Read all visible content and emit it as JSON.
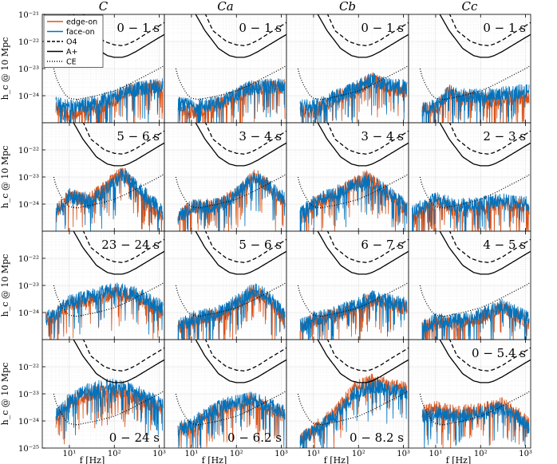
{
  "chart_data": {
    "type": "line",
    "title": "",
    "columns": [
      "C",
      "Ca",
      "Cb",
      "Cc"
    ],
    "xlabel": "f [Hz]",
    "ylabel": "h_c @ 10 Mpc",
    "xscale": "log",
    "yscale": "log",
    "xlim": [
      2.5,
      1300
    ],
    "ylim": [
      1e-25,
      1e-21
    ],
    "x_ticks": [
      10,
      100,
      1000
    ],
    "x_tick_labels": [
      "10^1",
      "10^2",
      "10^3"
    ],
    "y_tick_labels": [
      "10^-21",
      "10^-22",
      "10^-23",
      "10^-24",
      "10^-25"
    ],
    "grid": true,
    "legend": {
      "location": "top-left of first panel",
      "entries": [
        {
          "label": "edge-on",
          "style": "solid",
          "color": "#D95319"
        },
        {
          "label": "face-on",
          "style": "solid",
          "color": "#0072BD"
        },
        {
          "label": "O4",
          "style": "dashed",
          "color": "#000000"
        },
        {
          "label": "A+",
          "style": "solid",
          "color": "#000000"
        },
        {
          "label": "CE",
          "style": "dotted",
          "color": "#000000"
        }
      ]
    },
    "detector_curves": [
      {
        "name": "O4",
        "style": "dashed",
        "points": [
          [
            20,
            1.1e-21
          ],
          [
            30,
            2.5e-22
          ],
          [
            60,
            1e-22
          ],
          [
            100,
            7.5e-23
          ],
          [
            150,
            7e-23
          ],
          [
            200,
            8e-23
          ],
          [
            300,
            1.1e-22
          ],
          [
            500,
            1.9e-22
          ],
          [
            1000,
            3.8e-22
          ],
          [
            1300,
            5e-22
          ]
        ]
      },
      {
        "name": "A+",
        "style": "solid",
        "points": [
          [
            12,
            1.1e-21
          ],
          [
            20,
            2.5e-22
          ],
          [
            40,
            5.5e-23
          ],
          [
            70,
            3e-23
          ],
          [
            100,
            2.6e-23
          ],
          [
            150,
            2.6e-23
          ],
          [
            200,
            3e-23
          ],
          [
            300,
            4.2e-23
          ],
          [
            500,
            7e-23
          ],
          [
            1000,
            1.4e-22
          ],
          [
            1300,
            1.8e-22
          ]
        ]
      },
      {
        "name": "CE",
        "style": "dotted",
        "points": [
          [
            4.5,
            1e-23
          ],
          [
            5,
            5e-24
          ],
          [
            6,
            2.5e-24
          ],
          [
            8,
            1.1e-24
          ],
          [
            10,
            8e-25
          ],
          [
            15,
            7.2e-25
          ],
          [
            20,
            8e-25
          ],
          [
            40,
            1e-24
          ],
          [
            100,
            1.5e-24
          ],
          [
            200,
            2.5e-24
          ],
          [
            500,
            5.5e-24
          ],
          [
            1000,
            1e-23
          ],
          [
            1300,
            1.3e-23
          ]
        ]
      }
    ],
    "panels": [
      {
        "row": 0,
        "col": "C",
        "label": "0 − 1 s",
        "edge": [
          [
            5,
            3e-25
          ],
          [
            10,
            2e-25
          ],
          [
            30,
            3e-25
          ],
          [
            80,
            6e-25
          ],
          [
            200,
            1.5e-24
          ],
          [
            500,
            2e-24
          ],
          [
            1200,
            2.5e-24
          ]
        ],
        "face": [
          [
            5,
            5e-25
          ],
          [
            10,
            4e-25
          ],
          [
            30,
            5e-25
          ],
          [
            80,
            8e-25
          ],
          [
            200,
            1.5e-24
          ],
          [
            500,
            2e-24
          ],
          [
            1200,
            2.5e-24
          ]
        ]
      },
      {
        "row": 0,
        "col": "Ca",
        "label": "0 − 1 s",
        "edge": [
          [
            5,
            3e-25
          ],
          [
            10,
            2.5e-25
          ],
          [
            30,
            4e-25
          ],
          [
            80,
            8e-25
          ],
          [
            200,
            1.8e-24
          ],
          [
            500,
            2e-24
          ],
          [
            1200,
            2.2e-24
          ]
        ],
        "face": [
          [
            5,
            5e-25
          ],
          [
            10,
            4e-25
          ],
          [
            30,
            5e-25
          ],
          [
            80,
            9e-25
          ],
          [
            200,
            2e-24
          ],
          [
            500,
            2.2e-24
          ],
          [
            1200,
            2.5e-24
          ]
        ]
      },
      {
        "row": 0,
        "col": "Cb",
        "label": "0 − 1 s",
        "edge": [
          [
            5,
            3e-25
          ],
          [
            10,
            2.5e-25
          ],
          [
            30,
            8e-25
          ],
          [
            80,
            1.5e-24
          ],
          [
            200,
            4e-24
          ],
          [
            500,
            2e-24
          ],
          [
            1200,
            1.5e-24
          ]
        ],
        "face": [
          [
            5,
            4e-25
          ],
          [
            10,
            4e-25
          ],
          [
            30,
            9e-25
          ],
          [
            80,
            1.8e-24
          ],
          [
            200,
            4e-24
          ],
          [
            500,
            2.5e-24
          ],
          [
            1200,
            2e-24
          ]
        ]
      },
      {
        "row": 0,
        "col": "Cc",
        "label": "0 − 1 s",
        "edge": [
          [
            5,
            3e-25
          ],
          [
            10,
            3e-25
          ],
          [
            20,
            1.5e-24
          ],
          [
            40,
            8e-25
          ],
          [
            100,
            7e-25
          ],
          [
            300,
            8e-25
          ],
          [
            1200,
            9e-25
          ]
        ],
        "face": [
          [
            5,
            3e-25
          ],
          [
            10,
            4e-25
          ],
          [
            20,
            1.3e-24
          ],
          [
            40,
            1e-24
          ],
          [
            100,
            1e-24
          ],
          [
            300,
            1.2e-24
          ],
          [
            1200,
            1.5e-24
          ]
        ]
      },
      {
        "row": 1,
        "col": "C",
        "label": "5 − 6 s",
        "edge": [
          [
            5,
            5e-25
          ],
          [
            10,
            2e-24
          ],
          [
            30,
            1.5e-24
          ],
          [
            80,
            6e-24
          ],
          [
            150,
            1.5e-23
          ],
          [
            300,
            4e-24
          ],
          [
            1200,
            3e-25
          ]
        ],
        "face": [
          [
            5,
            5e-25
          ],
          [
            10,
            2e-24
          ],
          [
            30,
            1.2e-24
          ],
          [
            80,
            5e-24
          ],
          [
            150,
            1.2e-23
          ],
          [
            300,
            5e-24
          ],
          [
            1200,
            5e-25
          ]
        ]
      },
      {
        "row": 1,
        "col": "Ca",
        "label": "3 − 4 s",
        "edge": [
          [
            5,
            3e-25
          ],
          [
            10,
            8e-25
          ],
          [
            40,
            9e-25
          ],
          [
            100,
            2.5e-24
          ],
          [
            250,
            1.2e-23
          ],
          [
            500,
            5e-24
          ],
          [
            1200,
            1e-24
          ]
        ],
        "face": [
          [
            5,
            3e-25
          ],
          [
            10,
            8e-25
          ],
          [
            40,
            9e-25
          ],
          [
            100,
            2.2e-24
          ],
          [
            250,
            1e-23
          ],
          [
            500,
            5e-24
          ],
          [
            1200,
            1.5e-24
          ]
        ]
      },
      {
        "row": 1,
        "col": "Cb",
        "label": "3 − 4 s",
        "edge": [
          [
            5,
            3e-25
          ],
          [
            10,
            1e-24
          ],
          [
            30,
            2e-24
          ],
          [
            80,
            6e-24
          ],
          [
            150,
            1e-23
          ],
          [
            400,
            3e-24
          ],
          [
            1200,
            6e-25
          ]
        ],
        "face": [
          [
            5,
            4e-25
          ],
          [
            10,
            1.2e-24
          ],
          [
            30,
            2.5e-24
          ],
          [
            80,
            5e-24
          ],
          [
            150,
            9e-24
          ],
          [
            400,
            3e-24
          ],
          [
            1200,
            8e-25
          ]
        ]
      },
      {
        "row": 1,
        "col": "Cc",
        "label": "2 − 3 s",
        "edge": [
          [
            3,
            3e-25
          ],
          [
            5,
            6e-25
          ],
          [
            10,
            1.2e-24
          ],
          [
            30,
            6e-25
          ],
          [
            100,
            7e-25
          ],
          [
            300,
            1.2e-24
          ],
          [
            1200,
            7e-25
          ]
        ],
        "face": [
          [
            3,
            5e-25
          ],
          [
            5,
            8e-25
          ],
          [
            10,
            1.5e-24
          ],
          [
            30,
            9e-25
          ],
          [
            100,
            1e-24
          ],
          [
            300,
            1.5e-24
          ],
          [
            1200,
            1e-24
          ]
        ]
      },
      {
        "row": 2,
        "col": "C",
        "label": "23 − 24 s",
        "edge": [
          [
            3,
            5e-25
          ],
          [
            5,
            8e-25
          ],
          [
            10,
            2e-24
          ],
          [
            30,
            3e-24
          ],
          [
            100,
            5e-24
          ],
          [
            300,
            4e-24
          ],
          [
            1200,
            1e-24
          ]
        ],
        "face": [
          [
            3,
            6e-25
          ],
          [
            5,
            9e-25
          ],
          [
            10,
            2.5e-24
          ],
          [
            30,
            4e-24
          ],
          [
            100,
            7e-24
          ],
          [
            300,
            5e-24
          ],
          [
            1200,
            1.5e-24
          ]
        ]
      },
      {
        "row": 2,
        "col": "Ca",
        "label": "5 − 6 s",
        "edge": [
          [
            5,
            3e-25
          ],
          [
            10,
            5e-25
          ],
          [
            40,
            8e-25
          ],
          [
            100,
            2e-24
          ],
          [
            250,
            6e-24
          ],
          [
            500,
            3e-24
          ],
          [
            1200,
            5e-25
          ]
        ],
        "face": [
          [
            5,
            3e-25
          ],
          [
            10,
            6e-25
          ],
          [
            40,
            1e-24
          ],
          [
            100,
            2.5e-24
          ],
          [
            250,
            7e-24
          ],
          [
            500,
            4e-24
          ],
          [
            1200,
            8e-25
          ]
        ]
      },
      {
        "row": 2,
        "col": "Cb",
        "label": "6 − 7 s",
        "edge": [
          [
            5,
            3e-25
          ],
          [
            10,
            5e-25
          ],
          [
            30,
            8e-25
          ],
          [
            80,
            1.5e-24
          ],
          [
            200,
            3e-24
          ],
          [
            500,
            2e-24
          ],
          [
            1200,
            1.5e-24
          ]
        ],
        "face": [
          [
            5,
            3e-25
          ],
          [
            10,
            6e-25
          ],
          [
            30,
            9e-25
          ],
          [
            80,
            1.8e-24
          ],
          [
            200,
            3.5e-24
          ],
          [
            500,
            2.5e-24
          ],
          [
            1200,
            2e-24
          ]
        ]
      },
      {
        "row": 2,
        "col": "Cc",
        "label": "4 − 5 s",
        "edge": [
          [
            5,
            3e-25
          ],
          [
            10,
            4e-25
          ],
          [
            40,
            4e-25
          ],
          [
            100,
            7e-25
          ],
          [
            300,
            1.5e-24
          ],
          [
            600,
            8e-25
          ],
          [
            1200,
            4e-25
          ]
        ],
        "face": [
          [
            5,
            3e-25
          ],
          [
            10,
            5e-25
          ],
          [
            40,
            5e-25
          ],
          [
            100,
            8e-25
          ],
          [
            300,
            1.8e-24
          ],
          [
            600,
            1e-24
          ],
          [
            1200,
            6e-25
          ]
        ]
      },
      {
        "row": 3,
        "col": "C",
        "label": "0 − 24 s",
        "edge": [
          [
            5,
            1e-24
          ],
          [
            10,
            5e-24
          ],
          [
            30,
            1e-23
          ],
          [
            80,
            1.2e-23
          ],
          [
            200,
            1e-23
          ],
          [
            500,
            5e-24
          ],
          [
            1200,
            3e-24
          ]
        ],
        "face": [
          [
            5,
            1.5e-24
          ],
          [
            10,
            6e-24
          ],
          [
            30,
            1.5e-23
          ],
          [
            80,
            2e-23
          ],
          [
            200,
            1.5e-23
          ],
          [
            500,
            8e-24
          ],
          [
            1200,
            4e-24
          ]
        ]
      },
      {
        "row": 3,
        "col": "Ca",
        "label": "0 − 6.2 s",
        "edge": [
          [
            5,
            4e-25
          ],
          [
            10,
            6e-25
          ],
          [
            30,
            2e-24
          ],
          [
            80,
            4e-24
          ],
          [
            200,
            6e-24
          ],
          [
            500,
            3e-24
          ],
          [
            1200,
            1.5e-24
          ]
        ],
        "face": [
          [
            5,
            5e-25
          ],
          [
            10,
            8e-25
          ],
          [
            30,
            2.5e-24
          ],
          [
            80,
            5e-24
          ],
          [
            200,
            7e-24
          ],
          [
            500,
            4e-24
          ],
          [
            1200,
            2e-24
          ]
        ]
      },
      {
        "row": 3,
        "col": "Cb",
        "label": "0 − 8.2 s",
        "edge": [
          [
            5,
            2e-25
          ],
          [
            10,
            5e-25
          ],
          [
            30,
            2e-24
          ],
          [
            80,
            1.5e-23
          ],
          [
            200,
            3e-23
          ],
          [
            500,
            2e-23
          ],
          [
            1200,
            1.5e-23
          ]
        ],
        "face": [
          [
            5,
            2e-25
          ],
          [
            10,
            4e-25
          ],
          [
            30,
            1.5e-24
          ],
          [
            80,
            1e-23
          ],
          [
            200,
            2e-23
          ],
          [
            500,
            1.5e-23
          ],
          [
            1200,
            1e-23
          ]
        ]
      },
      {
        "row": 3,
        "col": "Cc",
        "label": "0 − 5.4 s",
        "edge": [
          [
            5,
            2e-24
          ],
          [
            10,
            3e-24
          ],
          [
            30,
            2e-24
          ],
          [
            100,
            2.5e-24
          ],
          [
            300,
            4e-24
          ],
          [
            600,
            2e-24
          ],
          [
            1200,
            8e-25
          ]
        ],
        "face": [
          [
            5,
            1.5e-24
          ],
          [
            10,
            2e-24
          ],
          [
            30,
            1.5e-24
          ],
          [
            100,
            2e-24
          ],
          [
            300,
            3e-24
          ],
          [
            600,
            1.5e-24
          ],
          [
            1200,
            6e-25
          ]
        ]
      }
    ]
  }
}
